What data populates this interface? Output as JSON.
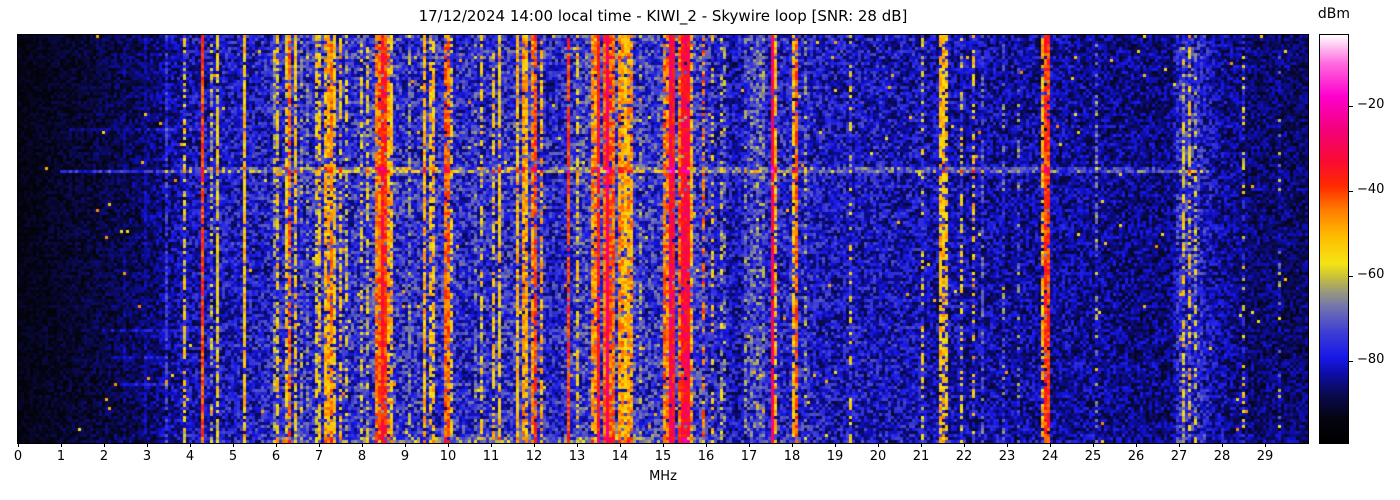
{
  "figure": {
    "background": "#ffffff"
  },
  "chart_data": {
    "type": "heatmap",
    "subtype": "hf-spectrum-waterfall",
    "title": "17/12/2024 14:00 local time - KIWI_2 - Skywire loop [SNR: 28 dB]",
    "xlabel": "MHz",
    "x_range_mhz": [
      0,
      30
    ],
    "x_ticks": [
      "0",
      "1",
      "2",
      "3",
      "4",
      "5",
      "6",
      "7",
      "8",
      "9",
      "10",
      "11",
      "12",
      "13",
      "14",
      "15",
      "16",
      "17",
      "18",
      "19",
      "20",
      "21",
      "22",
      "23",
      "24",
      "25",
      "26",
      "27",
      "28",
      "29"
    ],
    "colorbar": {
      "label": "dBm",
      "tick_labels": [
        "−20",
        "−40",
        "−60",
        "−80"
      ],
      "tick_values": [
        -20,
        -40,
        -60,
        -80
      ],
      "min_dbm": -99,
      "max_dbm": -3
    },
    "colormap_stops": [
      [
        0.0,
        "#000000"
      ],
      [
        0.06,
        "#040410"
      ],
      [
        0.12,
        "#0a0a52"
      ],
      [
        0.17,
        "#0d0da8"
      ],
      [
        0.21,
        "#1818e8"
      ],
      [
        0.27,
        "#3c3cd4"
      ],
      [
        0.33,
        "#7070b2"
      ],
      [
        0.37,
        "#98987e"
      ],
      [
        0.41,
        "#ccc434"
      ],
      [
        0.44,
        "#f5e414"
      ],
      [
        0.51,
        "#ffb900"
      ],
      [
        0.57,
        "#ff7d00"
      ],
      [
        0.63,
        "#ff2a00"
      ],
      [
        0.69,
        "#fa0a32"
      ],
      [
        0.77,
        "#f4007d"
      ],
      [
        0.85,
        "#fe00cd"
      ],
      [
        0.93,
        "#ff6ade"
      ],
      [
        1.0,
        "#ffffff"
      ]
    ],
    "noise_floor_profile": [
      [
        0,
        0.06
      ],
      [
        0.8,
        0.08
      ],
      [
        1.8,
        0.1
      ],
      [
        2.6,
        0.12
      ],
      [
        3.2,
        0.14
      ],
      [
        3.8,
        0.18
      ],
      [
        4.5,
        0.2
      ],
      [
        5.5,
        0.21
      ],
      [
        6.5,
        0.23
      ],
      [
        8.0,
        0.24
      ],
      [
        8.5,
        0.27
      ],
      [
        9.0,
        0.24
      ],
      [
        10.5,
        0.23
      ],
      [
        11.8,
        0.25
      ],
      [
        12.4,
        0.22
      ],
      [
        13.3,
        0.26
      ],
      [
        14.1,
        0.27
      ],
      [
        14.5,
        0.24
      ],
      [
        15.0,
        0.26
      ],
      [
        15.7,
        0.26
      ],
      [
        16.2,
        0.22
      ],
      [
        16.7,
        0.19
      ],
      [
        17.1,
        0.22
      ],
      [
        18.2,
        0.22
      ],
      [
        19.0,
        0.2
      ],
      [
        20.0,
        0.2
      ],
      [
        21.0,
        0.19
      ],
      [
        22.0,
        0.18
      ],
      [
        23.0,
        0.17
      ],
      [
        24.2,
        0.17
      ],
      [
        25.0,
        0.16
      ],
      [
        26.0,
        0.15
      ],
      [
        26.85,
        0.15
      ],
      [
        27.0,
        0.24
      ],
      [
        27.5,
        0.22
      ],
      [
        27.9,
        0.17
      ],
      [
        28.6,
        0.14
      ],
      [
        29.0,
        0.135
      ],
      [
        30,
        0.13
      ]
    ],
    "signal_bands": [
      [
        2.45,
        2.49,
        0.15,
        0.8
      ],
      [
        2.93,
        2.97,
        0.17,
        0.9
      ],
      [
        3.45,
        3.5,
        0.22,
        0.8
      ],
      [
        3.84,
        3.89,
        0.44,
        0.5
      ],
      [
        4.26,
        4.33,
        0.62,
        0.95
      ],
      [
        4.47,
        4.51,
        0.4,
        0.45
      ],
      [
        4.62,
        4.66,
        0.45,
        0.8
      ],
      [
        5.21,
        5.29,
        0.5,
        0.9
      ],
      [
        5.55,
        5.59,
        0.42,
        0.35
      ],
      [
        5.9,
        5.97,
        0.36,
        0.7
      ],
      [
        6.03,
        6.09,
        0.46,
        0.6
      ],
      [
        6.18,
        6.25,
        0.48,
        0.7
      ],
      [
        6.3,
        6.35,
        0.6,
        0.8
      ],
      [
        6.41,
        6.5,
        0.46,
        0.7
      ],
      [
        6.55,
        6.61,
        0.35,
        0.6
      ],
      [
        6.7,
        6.78,
        0.36,
        0.5
      ],
      [
        6.88,
        6.95,
        0.46,
        0.55
      ],
      [
        7.0,
        7.07,
        0.48,
        0.6
      ],
      [
        7.1,
        7.17,
        0.5,
        0.75
      ],
      [
        7.2,
        7.31,
        0.53,
        0.85
      ],
      [
        7.33,
        7.41,
        0.48,
        0.7
      ],
      [
        7.45,
        7.51,
        0.46,
        0.5
      ],
      [
        7.6,
        7.65,
        0.44,
        0.5
      ],
      [
        7.78,
        7.83,
        0.36,
        0.5
      ],
      [
        7.95,
        8.01,
        0.45,
        0.45
      ],
      [
        8.08,
        8.13,
        0.46,
        0.45
      ],
      [
        8.33,
        8.43,
        0.58,
        0.9
      ],
      [
        8.45,
        8.57,
        0.66,
        0.95
      ],
      [
        8.6,
        8.71,
        0.5,
        0.7
      ],
      [
        9.05,
        9.11,
        0.36,
        0.5
      ],
      [
        9.4,
        9.49,
        0.5,
        0.8
      ],
      [
        9.55,
        9.61,
        0.46,
        0.6
      ],
      [
        9.66,
        9.73,
        0.48,
        0.6
      ],
      [
        9.9,
        10.03,
        0.57,
        0.85
      ],
      [
        10.08,
        10.15,
        0.48,
        0.6
      ],
      [
        10.3,
        10.36,
        0.36,
        0.5
      ],
      [
        10.6,
        10.65,
        0.35,
        0.5
      ],
      [
        10.75,
        10.8,
        0.46,
        0.5
      ],
      [
        11.0,
        11.09,
        0.48,
        0.6
      ],
      [
        11.15,
        11.26,
        0.5,
        0.8
      ],
      [
        11.55,
        11.63,
        0.52,
        0.85
      ],
      [
        11.63,
        11.67,
        0.68,
        0.95
      ],
      [
        11.7,
        11.86,
        0.52,
        0.8
      ],
      [
        11.9,
        12.01,
        0.55,
        0.8
      ],
      [
        12.02,
        12.07,
        0.62,
        0.8
      ],
      [
        12.12,
        12.19,
        0.48,
        0.6
      ],
      [
        12.53,
        12.57,
        0.48,
        0.85
      ],
      [
        12.78,
        12.82,
        0.62,
        0.9
      ],
      [
        12.98,
        13.03,
        0.46,
        0.6
      ],
      [
        13.35,
        13.46,
        0.55,
        0.8
      ],
      [
        13.48,
        13.55,
        0.7,
        0.95
      ],
      [
        13.57,
        13.65,
        0.62,
        0.9
      ],
      [
        13.67,
        13.74,
        0.72,
        0.97
      ],
      [
        13.76,
        13.91,
        0.6,
        0.9
      ],
      [
        13.92,
        14.11,
        0.54,
        0.85
      ],
      [
        14.12,
        14.31,
        0.52,
        0.8
      ],
      [
        14.45,
        14.51,
        0.36,
        0.5
      ],
      [
        15.0,
        15.11,
        0.55,
        0.8
      ],
      [
        15.12,
        15.31,
        0.7,
        0.97
      ],
      [
        15.32,
        15.43,
        0.58,
        0.85
      ],
      [
        15.45,
        15.61,
        0.68,
        0.95
      ],
      [
        15.62,
        15.71,
        0.5,
        0.7
      ],
      [
        15.9,
        15.98,
        0.57,
        0.5
      ],
      [
        16.12,
        16.19,
        0.44,
        0.35
      ],
      [
        16.3,
        16.37,
        0.36,
        0.5
      ],
      [
        16.42,
        16.5,
        0.35,
        0.4
      ],
      [
        16.9,
        17.36,
        0.33,
        0.45
      ],
      [
        17.52,
        17.57,
        0.7,
        0.97
      ],
      [
        17.58,
        17.64,
        0.5,
        0.8
      ],
      [
        17.76,
        17.82,
        0.46,
        0.6
      ],
      [
        18.0,
        18.06,
        0.48,
        0.7
      ],
      [
        18.08,
        18.14,
        0.6,
        0.85
      ],
      [
        18.3,
        18.35,
        0.36,
        0.4
      ],
      [
        18.88,
        18.93,
        0.45,
        0.4
      ],
      [
        19.33,
        19.38,
        0.44,
        0.35
      ],
      [
        19.78,
        19.83,
        0.3,
        0.45
      ],
      [
        20.55,
        20.61,
        0.35,
        0.3
      ],
      [
        21.0,
        21.07,
        0.45,
        0.32
      ],
      [
        21.18,
        21.23,
        0.34,
        0.35
      ],
      [
        21.45,
        21.53,
        0.52,
        0.75
      ],
      [
        21.56,
        21.63,
        0.5,
        0.55
      ],
      [
        21.88,
        21.95,
        0.47,
        0.4
      ],
      [
        22.18,
        22.25,
        0.47,
        0.35
      ],
      [
        22.4,
        22.44,
        0.28,
        0.5
      ],
      [
        22.9,
        22.95,
        0.32,
        0.3
      ],
      [
        23.22,
        23.27,
        0.36,
        0.3
      ],
      [
        23.8,
        23.87,
        0.5,
        0.7
      ],
      [
        23.88,
        23.99,
        0.62,
        0.92
      ],
      [
        24.88,
        24.94,
        0.48,
        0.7
      ],
      [
        25.05,
        25.11,
        0.33,
        0.3
      ],
      [
        25.58,
        25.63,
        0.34,
        0.35
      ],
      [
        26.2,
        26.25,
        0.36,
        0.25
      ],
      [
        27.08,
        27.15,
        0.47,
        0.5
      ],
      [
        27.22,
        27.29,
        0.45,
        0.45
      ],
      [
        27.38,
        27.43,
        0.4,
        0.35
      ],
      [
        27.82,
        27.87,
        0.42,
        0.5
      ],
      [
        28.16,
        28.22,
        0.36,
        0.35
      ],
      [
        28.48,
        28.53,
        0.44,
        0.25
      ],
      [
        28.93,
        28.97,
        0.26,
        0.5
      ],
      [
        29.3,
        29.34,
        0.36,
        0.18
      ],
      [
        29.48,
        29.52,
        0.42,
        0.15
      ]
    ],
    "time_events": [
      {
        "row": 0.322,
        "rows": 1,
        "f0": 4.0,
        "f1": 26.5,
        "boost": 0.1
      },
      {
        "row": 0.334,
        "rows": 1,
        "f0": 1.0,
        "f1": 27.6,
        "boost": 0.13
      },
      {
        "row": 0.225,
        "rows": 1,
        "f0": 1.2,
        "f1": 4.6,
        "boost": 0.05
      },
      {
        "row": 0.72,
        "rows": 1,
        "f0": 2.0,
        "f1": 3.8,
        "boost": 0.06
      },
      {
        "row": 0.79,
        "rows": 1,
        "f0": 2.2,
        "f1": 3.2,
        "boost": 0.05
      },
      {
        "row": 0.855,
        "rows": 1,
        "f0": 2.4,
        "f1": 3.4,
        "boost": 0.09
      },
      {
        "row": 0.985,
        "rows": 2,
        "f0": 5.8,
        "f1": 16.0,
        "boost": 0.06
      },
      {
        "row": 0.05,
        "rows": 1,
        "f0": 6.0,
        "f1": 16.0,
        "boost": 0.04
      }
    ],
    "seed": 7
  }
}
